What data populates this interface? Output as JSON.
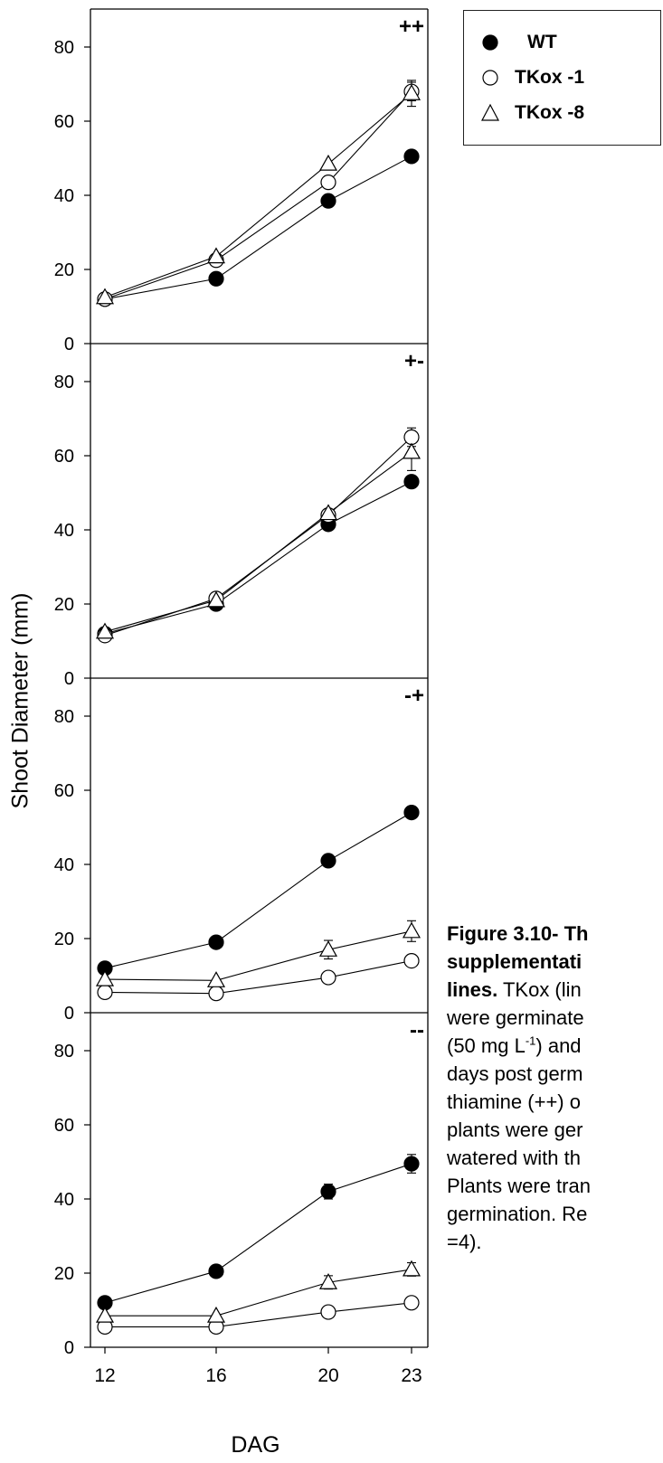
{
  "legend": {
    "items": [
      {
        "label": "WT",
        "marker": "filled-circle"
      },
      {
        "label": "TKox -1",
        "marker": "open-circle"
      },
      {
        "label": "TKox -8",
        "marker": "open-triangle"
      }
    ]
  },
  "caption": {
    "title_lines": [
      "Figure 3.10- Th",
      "supplementati",
      "lines."
    ],
    "body_first": " TKox (lin",
    "body_lines": [
      "were germinate"
    ],
    "sup_line": {
      "before": "(50 mg L",
      "sup": "-1",
      "after": ") and"
    },
    "rest_lines": [
      "days post germ",
      "thiamine (++) o",
      "plants were ger",
      "watered with th",
      "Plants were tran",
      "germination. Re",
      "=4)."
    ]
  },
  "colors": {
    "wt_fill": "#000000",
    "tkox_fill": "#ffffff",
    "stroke": "#000000"
  },
  "chart_data": {
    "type": "line",
    "xlabel": "DAG",
    "ylabel": "Shoot Diameter (mm)",
    "categories": [
      "12",
      "16",
      "20",
      "23"
    ],
    "x": [
      12,
      16,
      20,
      23
    ],
    "ylim": [
      0,
      90
    ],
    "yticks": [
      0,
      20,
      40,
      60,
      80
    ],
    "panels": [
      {
        "label": "++",
        "series": [
          {
            "name": "WT",
            "marker": "filled-circle",
            "values": [
              12,
              17.5,
              38.5,
              50.5
            ],
            "err": [
              0.6,
              0.6,
              0.8,
              1
            ]
          },
          {
            "name": "TKox -1",
            "marker": "open-circle",
            "values": [
              12,
              22.5,
              43.5,
              68
            ],
            "err": [
              0.6,
              0.6,
              1,
              2.5
            ]
          },
          {
            "name": "TKox -8",
            "marker": "open-triangle",
            "values": [
              12.5,
              23.5,
              48.5,
              67.5
            ],
            "err": [
              0.6,
              0.6,
              0.8,
              3.5
            ]
          }
        ]
      },
      {
        "label": "+-",
        "series": [
          {
            "name": "WT",
            "marker": "filled-circle",
            "values": [
              12,
              20,
              41.5,
              53
            ],
            "err": [
              0.6,
              0.6,
              1,
              1
            ]
          },
          {
            "name": "TKox -1",
            "marker": "open-circle",
            "values": [
              11.5,
              21.5,
              44,
              65
            ],
            "err": [
              0.6,
              0.6,
              1,
              2.5
            ]
          },
          {
            "name": "TKox -8",
            "marker": "open-triangle",
            "values": [
              12.5,
              21,
              44.5,
              61
            ],
            "err": [
              0.6,
              0.6,
              1,
              5
            ]
          }
        ]
      },
      {
        "label": "-+",
        "series": [
          {
            "name": "WT",
            "marker": "filled-circle",
            "values": [
              12,
              19,
              41,
              54
            ],
            "err": [
              0.6,
              0.6,
              1,
              1
            ]
          },
          {
            "name": "TKox -1",
            "marker": "open-circle",
            "values": [
              5.5,
              5.2,
              9.5,
              14
            ],
            "err": [
              0.5,
              0.5,
              0.8,
              0.8
            ]
          },
          {
            "name": "TKox -8",
            "marker": "open-triangle",
            "values": [
              9,
              8.7,
              17,
              22
            ],
            "err": [
              0.6,
              0.6,
              2.5,
              2.8
            ]
          }
        ]
      },
      {
        "label": "--",
        "series": [
          {
            "name": "WT",
            "marker": "filled-circle",
            "values": [
              12,
              20.5,
              42,
              49.5
            ],
            "err": [
              0.6,
              0.6,
              2,
              2.5
            ]
          },
          {
            "name": "TKox -1",
            "marker": "open-circle",
            "values": [
              5.5,
              5.5,
              9.5,
              12
            ],
            "err": [
              0.5,
              0.5,
              0.8,
              0.8
            ]
          },
          {
            "name": "TKox -8",
            "marker": "open-triangle",
            "values": [
              8.5,
              8.5,
              17.5,
              21
            ],
            "err": [
              0.6,
              0.6,
              1.8,
              1.8
            ]
          }
        ]
      }
    ]
  }
}
